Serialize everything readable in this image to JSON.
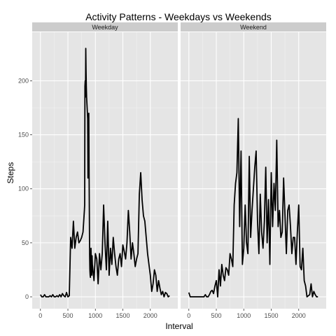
{
  "chart_data": {
    "type": "line",
    "title": "Activity Patterns - Weekdays vs Weekends",
    "xlabel": "Interval",
    "ylabel": "Steps",
    "xlim": [
      -150,
      2500
    ],
    "ylim": [
      -11,
      245
    ],
    "x_ticks": [
      0,
      500,
      1000,
      1500,
      2000
    ],
    "y_ticks": [
      0,
      50,
      100,
      150,
      200
    ],
    "grid": true,
    "line_color": "#000000",
    "panel_background": "#e5e5e5",
    "strip_background": "#cccccc",
    "panels": [
      {
        "name": "Weekday",
        "x": [
          0,
          25,
          50,
          75,
          100,
          125,
          150,
          175,
          200,
          225,
          250,
          275,
          300,
          325,
          350,
          375,
          400,
          425,
          450,
          475,
          500,
          525,
          550,
          575,
          600,
          625,
          650,
          675,
          700,
          725,
          750,
          775,
          800,
          805,
          810,
          815,
          820,
          825,
          830,
          835,
          840,
          845,
          850,
          855,
          860,
          865,
          870,
          875,
          880,
          885,
          890,
          895,
          900,
          905,
          910,
          915,
          920,
          925,
          930,
          935,
          940,
          945,
          950,
          975,
          1000,
          1025,
          1050,
          1075,
          1100,
          1125,
          1150,
          1175,
          1200,
          1225,
          1250,
          1275,
          1300,
          1325,
          1350,
          1375,
          1400,
          1425,
          1450,
          1475,
          1500,
          1525,
          1550,
          1575,
          1600,
          1625,
          1650,
          1675,
          1700,
          1725,
          1750,
          1775,
          1800,
          1825,
          1850,
          1875,
          1900,
          1925,
          1950,
          1975,
          2000,
          2025,
          2050,
          2075,
          2100,
          2125,
          2150,
          2175,
          2200,
          2225,
          2250,
          2275,
          2300,
          2325,
          2350
        ],
        "y": [
          2,
          0,
          0,
          2,
          0,
          0,
          0,
          1,
          0,
          2,
          0,
          0,
          1,
          0,
          2,
          0,
          3,
          1,
          0,
          4,
          0,
          1,
          55,
          45,
          70,
          45,
          55,
          60,
          50,
          52,
          55,
          60,
          80,
          85,
          195,
          200,
          185,
          230,
          210,
          195,
          185,
          180,
          175,
          170,
          165,
          110,
          160,
          140,
          170,
          120,
          80,
          40,
          25,
          20,
          18,
          30,
          45,
          35,
          25,
          20,
          38,
          30,
          28,
          15,
          40,
          35,
          12,
          40,
          25,
          40,
          85,
          50,
          25,
          70,
          20,
          45,
          30,
          55,
          40,
          28,
          20,
          35,
          40,
          28,
          48,
          42,
          35,
          50,
          80,
          60,
          35,
          50,
          40,
          28,
          35,
          40,
          95,
          115,
          90,
          75,
          70,
          55,
          40,
          30,
          20,
          5,
          12,
          25,
          20,
          5,
          15,
          8,
          2,
          5,
          0,
          4,
          3,
          0,
          1
        ]
      },
      {
        "name": "Weekend",
        "x": [
          0,
          25,
          50,
          75,
          100,
          125,
          150,
          175,
          200,
          225,
          250,
          275,
          300,
          325,
          350,
          375,
          400,
          425,
          450,
          475,
          500,
          525,
          550,
          575,
          600,
          625,
          650,
          675,
          700,
          725,
          750,
          775,
          800,
          825,
          850,
          875,
          900,
          925,
          950,
          975,
          1000,
          1025,
          1050,
          1075,
          1100,
          1125,
          1150,
          1175,
          1200,
          1225,
          1250,
          1275,
          1300,
          1325,
          1350,
          1375,
          1400,
          1425,
          1450,
          1475,
          1500,
          1525,
          1550,
          1575,
          1600,
          1625,
          1650,
          1675,
          1700,
          1725,
          1750,
          1775,
          1800,
          1825,
          1850,
          1875,
          1900,
          1925,
          1950,
          1975,
          2000,
          2025,
          2050,
          2075,
          2100,
          2125,
          2150,
          2175,
          2200,
          2225,
          2250,
          2275,
          2300,
          2325,
          2350
        ],
        "y": [
          4,
          0,
          0,
          0,
          0,
          0,
          0,
          0,
          0,
          0,
          0,
          0,
          2,
          0,
          0,
          2,
          5,
          6,
          3,
          10,
          15,
          0,
          25,
          10,
          30,
          20,
          15,
          27,
          25,
          20,
          40,
          35,
          28,
          85,
          105,
          115,
          165,
          65,
          135,
          30,
          45,
          85,
          50,
          40,
          130,
          55,
          80,
          100,
          120,
          135,
          70,
          40,
          95,
          60,
          45,
          70,
          120,
          50,
          90,
          30,
          115,
          65,
          105,
          80,
          145,
          65,
          80,
          55,
          60,
          110,
          75,
          40,
          80,
          85,
          65,
          40,
          55,
          55,
          30,
          60,
          85,
          28,
          25,
          45,
          15,
          10,
          0,
          1,
          2,
          12,
          0,
          5,
          2,
          0,
          0
        ]
      }
    ]
  }
}
